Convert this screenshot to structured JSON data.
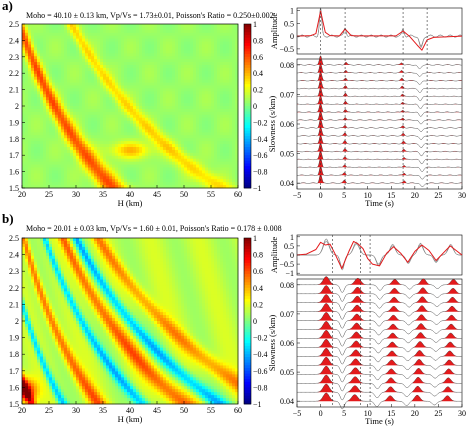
{
  "panels": [
    {
      "label": "a)",
      "title": "Moho = 40.10 ± 0.13 km, Vp/Vs = 1.73±0.01, Poisson's Ratio = 0.250±0.002",
      "hk": {
        "xlabel": "H (km)",
        "ylabel": "Vp/Vs",
        "xticks": [
          "20",
          "25",
          "30",
          "35",
          "40",
          "45",
          "50",
          "55",
          "60"
        ],
        "yticks": [
          "2.5",
          "2.4",
          "2.3",
          "2.2",
          "2.1",
          "2",
          "1.9",
          "1.8",
          "1.7",
          "1.6",
          "1.5"
        ],
        "cticks": [
          "1",
          "0.8",
          "0.6",
          "0.4",
          "0.2",
          "0",
          "−0.2",
          "−0.4",
          "−0.6",
          "−0.8",
          "−1"
        ]
      },
      "rf": {
        "amp_label": "Amplitude",
        "amp_ticks": [
          "1",
          "0.5",
          "0",
          "−0.5"
        ],
        "slow_label": "Slowness (s/km)",
        "slow_ticks": [
          "0.08",
          "0.07",
          "0.06",
          "0.05",
          "0.04"
        ],
        "xlabel": "Time (s)",
        "xticks": [
          "−5",
          "0",
          "5",
          "10",
          "15",
          "20",
          "25",
          "30"
        ]
      }
    },
    {
      "label": "b)",
      "title": "Moho = 20.01 ± 0.03 km, Vp/Vs = 1.60 ± 0.01, Poisson's Ratio = 0.178 ± 0.008",
      "hk": {
        "xlabel": "H (km)",
        "ylabel": "Vp/Vs",
        "xticks": [
          "20",
          "25",
          "30",
          "35",
          "40",
          "45",
          "50",
          "55",
          "60"
        ],
        "yticks": [
          "2.5",
          "2.4",
          "2.3",
          "2.2",
          "2.1",
          "2",
          "1.9",
          "1.8",
          "1.7",
          "1.6",
          "1.5"
        ],
        "cticks": [
          "1",
          "0.8",
          "0.6",
          "0.4",
          "0.2",
          "0",
          "−0.2",
          "−0.4",
          "−0.6",
          "−0.8",
          "−1"
        ]
      },
      "rf": {
        "amp_label": "Amplitude",
        "amp_ticks": [
          "1",
          "0.5",
          "0",
          "−0.5",
          "−1"
        ],
        "slow_label": "Slowness (s/km)",
        "slow_ticks": [
          "0.08",
          "0.07",
          "0.06",
          "0.05",
          "0.04"
        ],
        "xlabel": "Time (s)",
        "xticks": [
          "−5",
          "0",
          "5",
          "10",
          "15",
          "20",
          "25",
          "30"
        ]
      }
    }
  ],
  "chart_data": [
    {
      "type": "heatmap",
      "panel": "a",
      "xlabel": "H (km)",
      "ylabel": "Vp/Vs",
      "xlim": [
        20,
        60
      ],
      "ylim": [
        1.5,
        2.5
      ],
      "zlim": [
        -1,
        1
      ],
      "peak": {
        "H": 40.1,
        "VpVs": 1.73
      },
      "colormap": [
        "#00007f",
        "#0000ff",
        "#007fff",
        "#00ffff",
        "#7fff7f",
        "#ffff00",
        "#ff7f00",
        "#ff0000",
        "#7f0000"
      ]
    },
    {
      "type": "line",
      "panel": "a",
      "xlabel": "Time (s)",
      "xlim": [
        -5,
        30
      ],
      "amplitude_ylim": [
        -0.7,
        1.1
      ],
      "slowness_ylim": [
        0.038,
        0.082
      ],
      "phase_times": [
        0,
        5.2,
        17.5,
        22.6
      ],
      "stack_trace": {
        "x": [
          -5,
          -2,
          -1,
          0,
          1,
          2,
          4,
          5.2,
          6.5,
          8,
          16,
          17.5,
          19,
          20.5,
          21.5,
          22.6,
          24,
          30
        ],
        "y": [
          0,
          0.02,
          0.1,
          0.98,
          0.15,
          0.02,
          0.01,
          0.28,
          0.02,
          0.01,
          0.01,
          0.2,
          -0.03,
          -0.35,
          -0.55,
          -0.15,
          -0.05,
          0
        ]
      }
    },
    {
      "type": "heatmap",
      "panel": "b",
      "xlabel": "H (km)",
      "ylabel": "Vp/Vs",
      "xlim": [
        20,
        60
      ],
      "ylim": [
        1.5,
        2.5
      ],
      "zlim": [
        -1,
        1
      ],
      "peak": {
        "H": 20.01,
        "VpVs": 1.6
      },
      "colormap": [
        "#00007f",
        "#0000ff",
        "#007fff",
        "#00ffff",
        "#7fff7f",
        "#ffff00",
        "#ff7f00",
        "#ff0000",
        "#7f0000"
      ]
    },
    {
      "type": "line",
      "panel": "b",
      "xlabel": "Time (s)",
      "xlim": [
        -5,
        30
      ],
      "amplitude_ylim": [
        -1.1,
        1.1
      ],
      "slowness_ylim": [
        0.038,
        0.082
      ],
      "phase_times": [
        2.5,
        8.5,
        10.5
      ],
      "stack_trace": {
        "x": [
          -5,
          -3,
          -1,
          0,
          1,
          2,
          3,
          4.5,
          6,
          7,
          8,
          9,
          10,
          11,
          12.5,
          14,
          15.5,
          17,
          18.5,
          20,
          21.5,
          23,
          24.5,
          26,
          27.5,
          29,
          30
        ],
        "y": [
          0,
          0.05,
          0.3,
          0.7,
          0.55,
          0.6,
          0.1,
          -0.75,
          0.2,
          0.75,
          0.6,
          0.35,
          -0.2,
          -0.5,
          -0.6,
          0.1,
          0.45,
          0.1,
          -0.4,
          0.2,
          0.55,
          0.25,
          -0.3,
          0.1,
          0.5,
          0.2,
          0
        ]
      }
    }
  ]
}
